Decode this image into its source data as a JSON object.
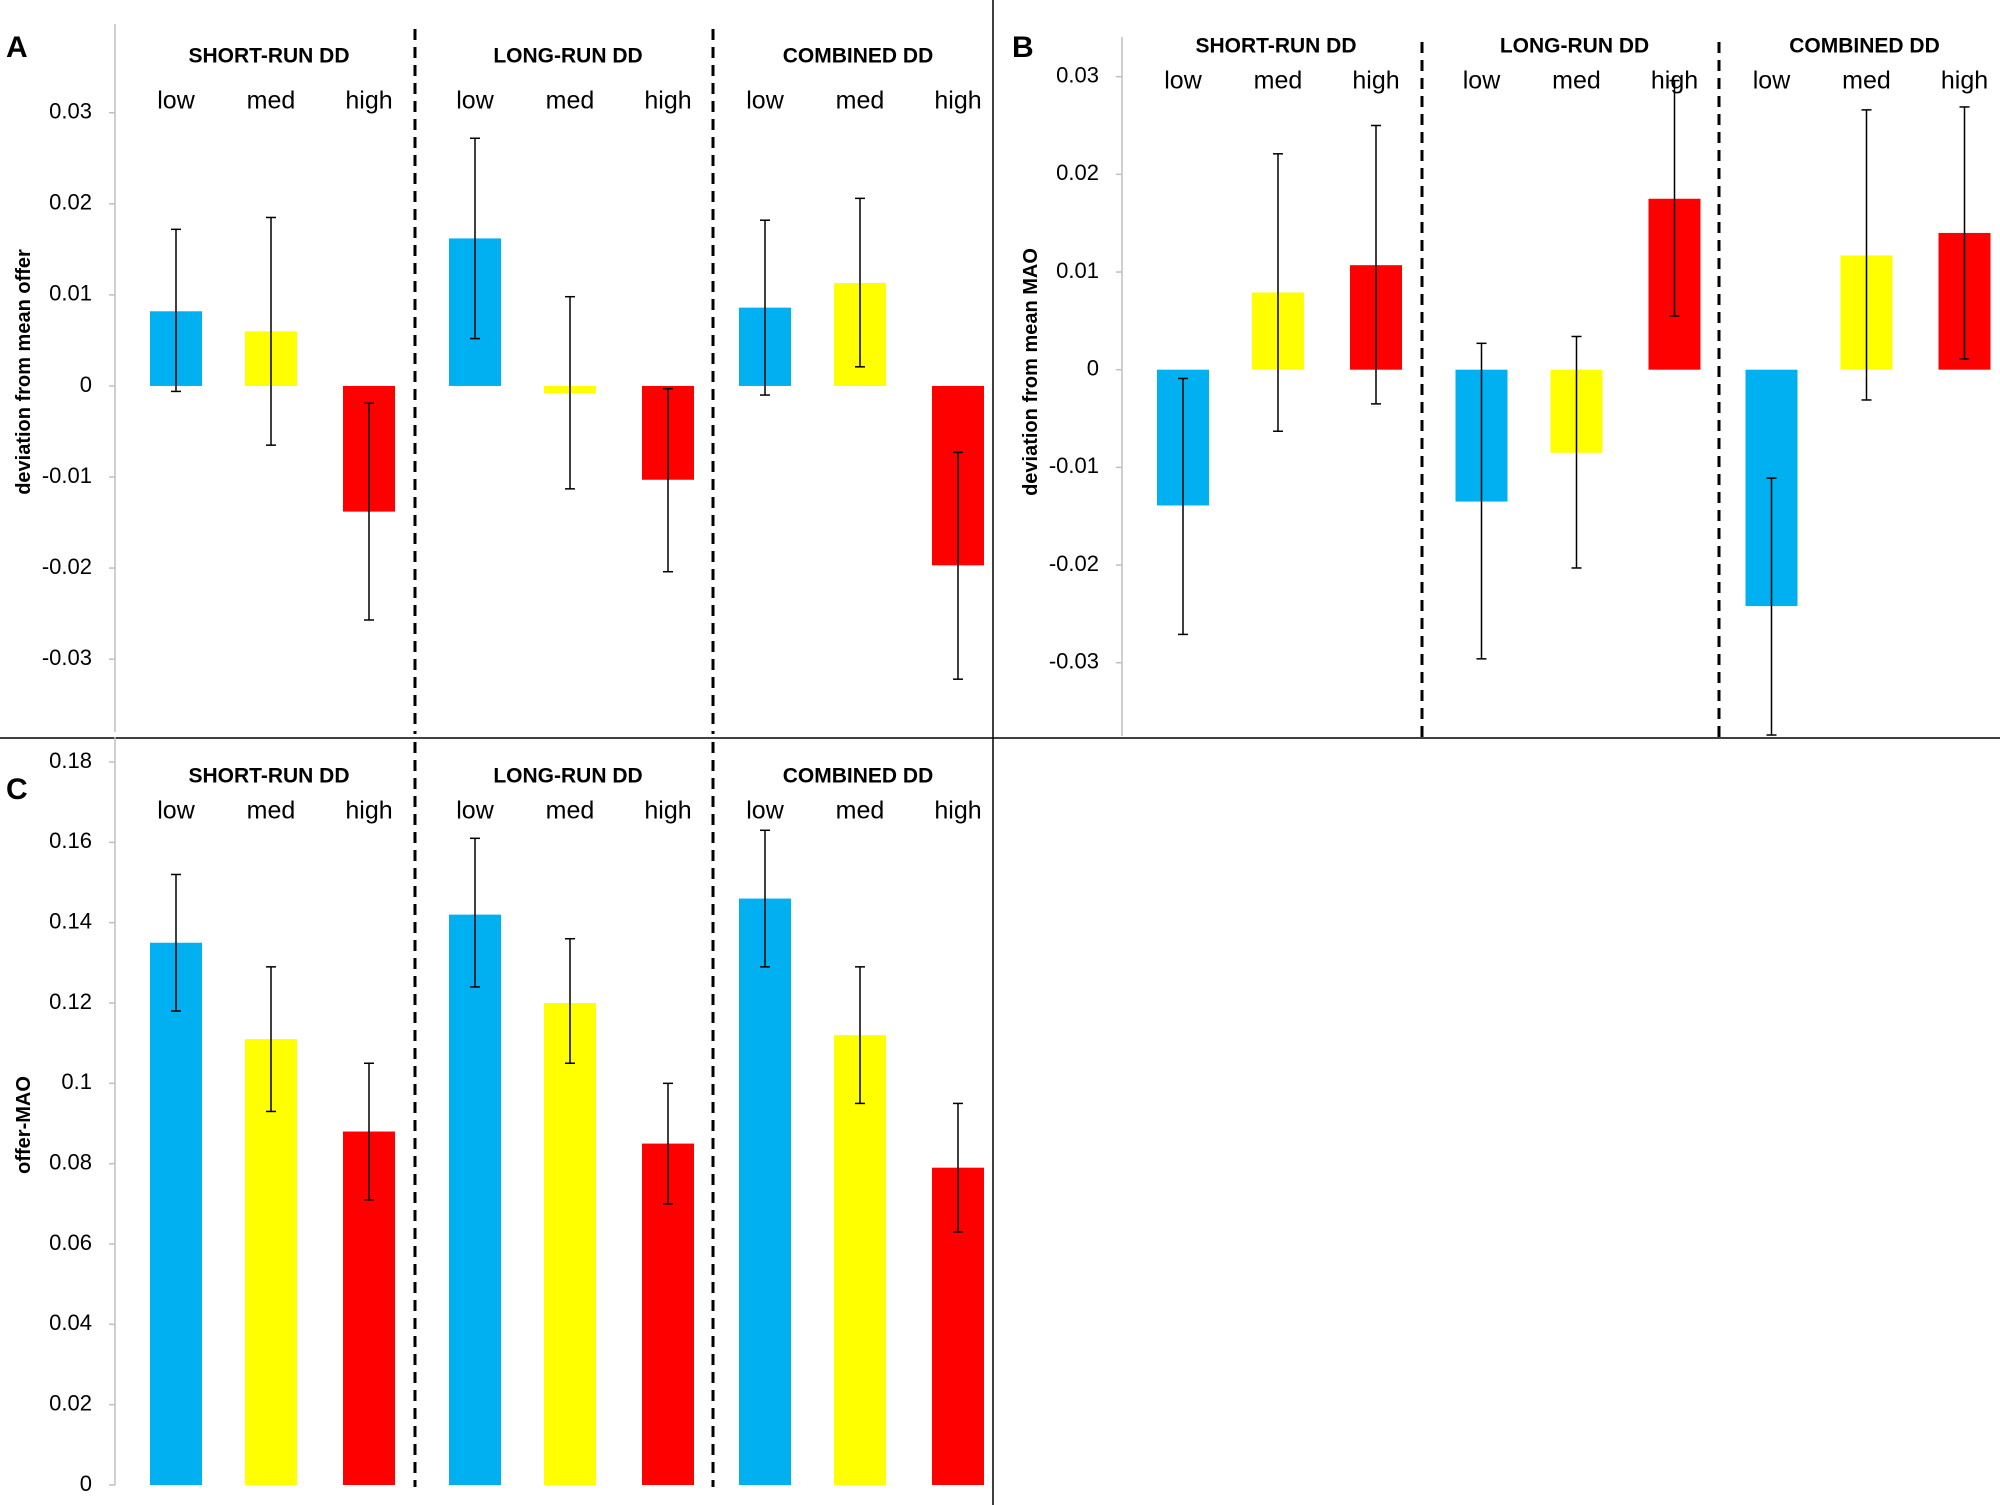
{
  "colors": {
    "low": "#00b0f0",
    "med": "#ffff00",
    "high": "#ff0000"
  },
  "chart_data": [
    {
      "panel": "A",
      "type": "bar",
      "groups": [
        "SHORT-RUN DD",
        "LONG-RUN DD",
        "COMBINED DD"
      ],
      "categories": [
        "low",
        "med",
        "high"
      ],
      "ylabel": "deviation from mean offer",
      "ylim": [
        -0.038,
        0.037
      ],
      "yticks": [
        0.03,
        0.02,
        0.01,
        0,
        -0.01,
        -0.02,
        -0.03
      ],
      "ytick_labels": [
        "0.03",
        "0.02",
        "0.01",
        "0",
        "-0.01",
        "-0.02",
        "-0.03"
      ],
      "series": [
        {
          "name": "SHORT-RUN DD",
          "values": [
            0.0082,
            0.006,
            -0.0138
          ],
          "err_low": [
            -0.0006,
            -0.0065,
            -0.0257
          ],
          "err_high": [
            0.0172,
            0.0185,
            -0.0019
          ]
        },
        {
          "name": "LONG-RUN DD",
          "values": [
            0.0162,
            -0.0008,
            -0.0103
          ],
          "err_low": [
            0.0052,
            -0.0113,
            -0.0204
          ],
          "err_high": [
            0.0272,
            0.0098,
            -0.0003
          ]
        },
        {
          "name": "COMBINED DD",
          "values": [
            0.0086,
            0.0113,
            -0.0197
          ],
          "err_low": [
            -0.001,
            0.0021,
            -0.0322
          ],
          "err_high": [
            0.0182,
            0.0206,
            -0.0073
          ]
        }
      ]
    },
    {
      "panel": "B",
      "type": "bar",
      "groups": [
        "SHORT-RUN DD",
        "LONG-RUN DD",
        "COMBINED DD"
      ],
      "categories": [
        "low",
        "med",
        "high"
      ],
      "ylabel": "deviation from mean MAO",
      "ylim": [
        -0.0375,
        0.0315
      ],
      "yticks": [
        0.03,
        0.02,
        0.01,
        0,
        -0.01,
        -0.02,
        -0.03
      ],
      "ytick_labels": [
        "0.03",
        "0.02",
        "0.01",
        "0",
        "-0.01",
        "-0.02",
        "-0.03"
      ],
      "series": [
        {
          "name": "SHORT-RUN DD",
          "values": [
            -0.0139,
            0.0079,
            0.0107
          ],
          "err_low": [
            -0.0271,
            -0.0063,
            -0.0035
          ],
          "err_high": [
            -0.0009,
            0.0221,
            0.025
          ]
        },
        {
          "name": "LONG-RUN DD",
          "values": [
            -0.0135,
            -0.0085,
            0.0175
          ],
          "err_low": [
            -0.0296,
            -0.0203,
            0.0055
          ],
          "err_high": [
            0.0027,
            0.0034,
            0.0296
          ]
        },
        {
          "name": "COMBINED DD",
          "values": [
            -0.0242,
            0.0117,
            0.014
          ],
          "err_low": [
            -0.0374,
            -0.0031,
            0.0011
          ],
          "err_high": [
            -0.0111,
            0.0266,
            0.0269
          ]
        }
      ]
    },
    {
      "panel": "C",
      "type": "bar",
      "groups": [
        "SHORT-RUN DD",
        "LONG-RUN DD",
        "COMBINED DD"
      ],
      "categories": [
        "low",
        "med",
        "high"
      ],
      "ylabel": "offer-MAO",
      "ylim": [
        0,
        0.18
      ],
      "yticks": [
        0.18,
        0.16,
        0.14,
        0.12,
        0.1,
        0.08,
        0.06,
        0.04,
        0.02,
        0
      ],
      "ytick_labels": [
        "0.18",
        "0.16",
        "0.14",
        "0.12",
        "0.1",
        "0.08",
        "0.06",
        "0.04",
        "0.02",
        "0"
      ],
      "series": [
        {
          "name": "SHORT-RUN DD",
          "values": [
            0.135,
            0.111,
            0.088
          ],
          "err_low": [
            0.118,
            0.093,
            0.071
          ],
          "err_high": [
            0.152,
            0.129,
            0.105
          ]
        },
        {
          "name": "LONG-RUN DD",
          "values": [
            0.142,
            0.12,
            0.085
          ],
          "err_low": [
            0.124,
            0.105,
            0.07
          ],
          "err_high": [
            0.161,
            0.136,
            0.1
          ]
        },
        {
          "name": "COMBINED DD",
          "values": [
            0.146,
            0.112,
            0.079
          ],
          "err_low": [
            0.129,
            0.095,
            0.063
          ],
          "err_high": [
            0.163,
            0.129,
            0.095
          ]
        }
      ]
    }
  ]
}
